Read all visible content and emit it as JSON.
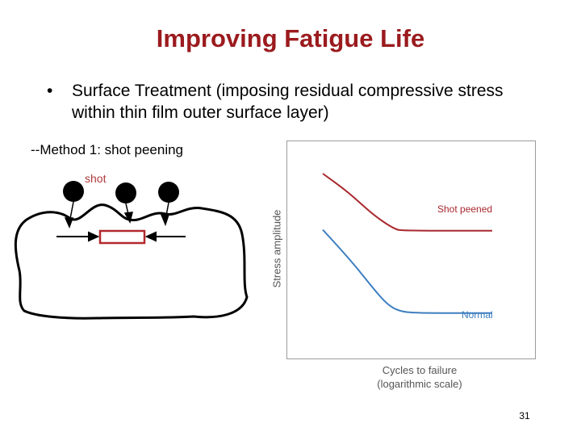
{
  "slide": {
    "title": "Improving Fatigue Life",
    "bullet": "Surface Treatment (imposing residual compressive stress within thin film outer surface layer)",
    "method_label": "--Method 1: shot peening",
    "shot_label": "shot",
    "page_number": "31"
  },
  "chart_data": {
    "type": "line",
    "xlabel": "Cycles to failure",
    "xlabel_note": "(logarithmic scale)",
    "ylabel": "Stress amplitude",
    "x_scale": "log",
    "grid": false,
    "series": [
      {
        "name": "Shot peened",
        "color": "#a8282e",
        "points": [
          [
            0.0,
            0.875
          ],
          [
            0.15,
            0.78
          ],
          [
            0.3,
            0.66
          ],
          [
            0.42,
            0.59
          ],
          [
            0.47,
            0.58
          ],
          [
            1.0,
            0.58
          ]
        ]
      },
      {
        "name": "Normal",
        "color": "#3d7ebf",
        "points": [
          [
            0.0,
            0.585
          ],
          [
            0.1,
            0.49
          ],
          [
            0.2,
            0.39
          ],
          [
            0.3,
            0.28
          ],
          [
            0.38,
            0.2
          ],
          [
            0.45,
            0.165
          ],
          [
            0.55,
            0.155
          ],
          [
            1.0,
            0.155
          ]
        ]
      }
    ]
  }
}
